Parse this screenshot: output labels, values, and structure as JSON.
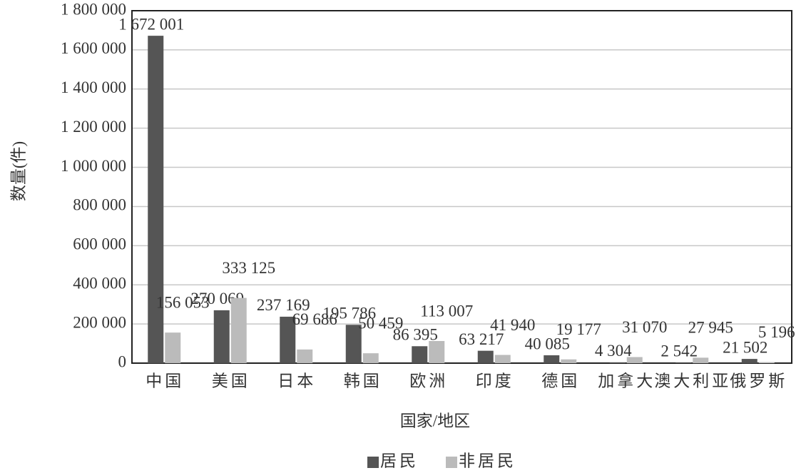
{
  "chart_data": {
    "type": "bar",
    "xlabel": "国家/地区",
    "ylabel": "数量(件)",
    "categories": [
      "中国",
      "美国",
      "日本",
      "韩国",
      "欧洲",
      "印度",
      "德国",
      "加拿大",
      "澳大利亚",
      "俄罗斯"
    ],
    "series": [
      {
        "name": "居民",
        "color": "#555555",
        "values": [
          1672001,
          270069,
          237169,
          195786,
          86395,
          63217,
          40085,
          4304,
          2542,
          21502
        ],
        "value_labels": [
          "1 672 001",
          "270 069",
          "237 169",
          "195 786",
          "86 395",
          "63 217",
          "40 085",
          "4 304",
          "2 542",
          "21 502"
        ]
      },
      {
        "name": "非居民",
        "color": "#bbbbbb",
        "values": [
          156053,
          333125,
          69686,
          50459,
          113007,
          41940,
          19177,
          31070,
          27945,
          5196
        ],
        "value_labels": [
          "156 053",
          "333 125",
          "69 686",
          "50 459",
          "113 007",
          "41 940",
          "19 177",
          "31 070",
          "27 945",
          "5 196"
        ]
      }
    ],
    "ylim": [
      0,
      1800000
    ],
    "yticks": [
      0,
      {
        "value": 200000,
        "label": "200 000"
      },
      {
        "value": 400000,
        "label": "400 000"
      },
      {
        "value": 600000,
        "label": "600 000"
      },
      {
        "value": 800000,
        "label": "800 000"
      },
      {
        "value": 1000000,
        "label": "1 000 000"
      },
      {
        "value": 1200000,
        "label": "1 200 000"
      },
      {
        "value": 1400000,
        "label": "1 400 000"
      },
      {
        "value": 1600000,
        "label": "1 600 000"
      },
      {
        "value": 1800000,
        "label": "1 800 000"
      }
    ],
    "grid": true,
    "legend": "bottom"
  }
}
